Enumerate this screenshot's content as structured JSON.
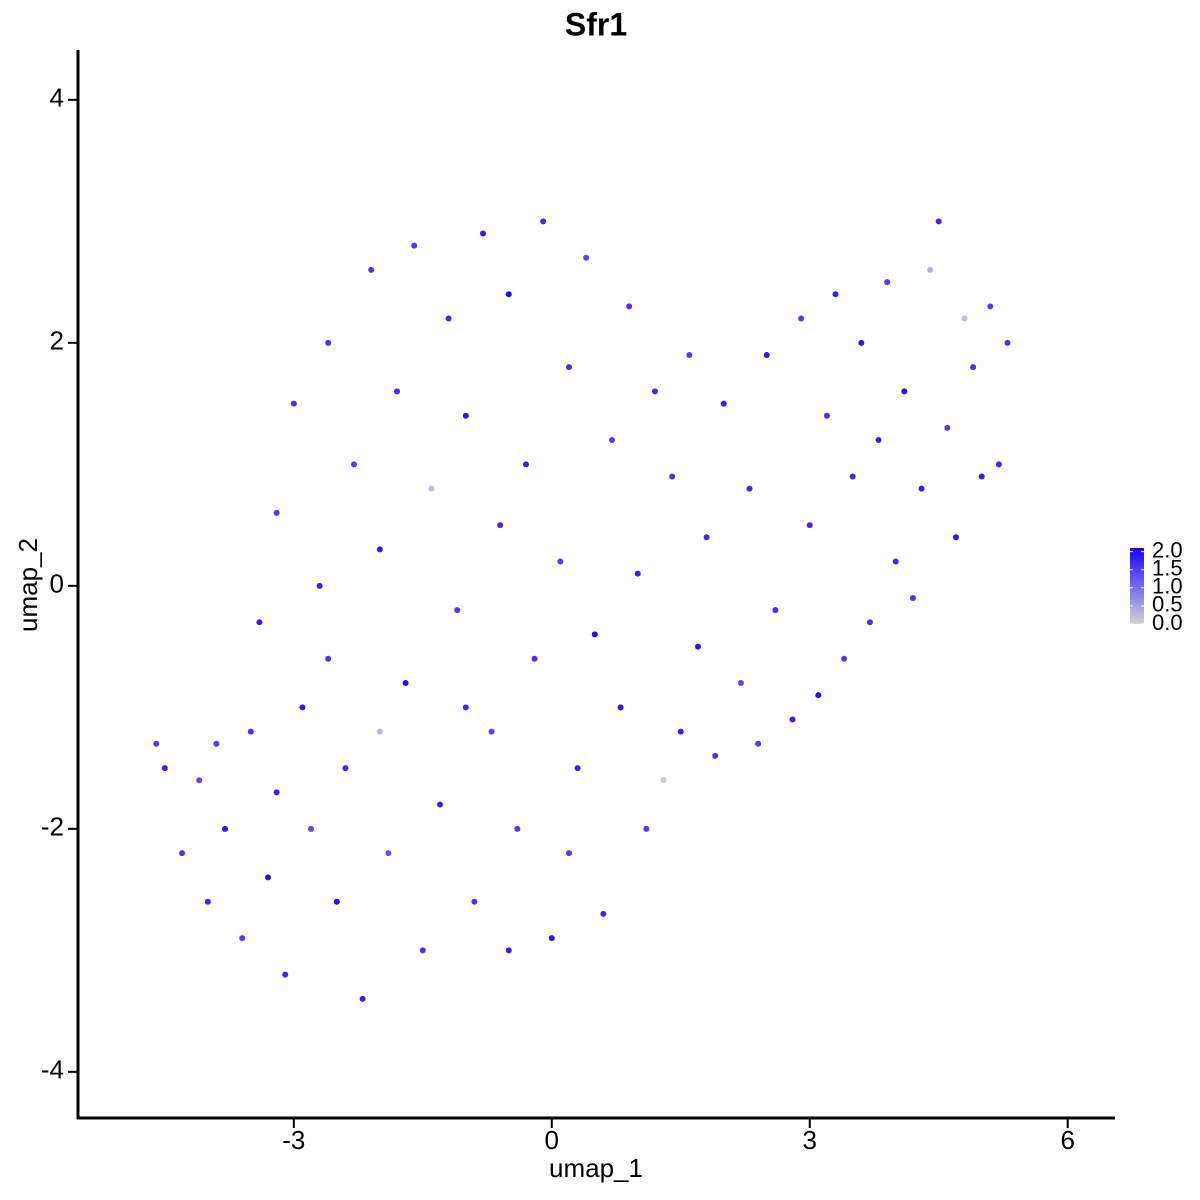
{
  "chart_data": {
    "type": "scatter",
    "title": "Sfr1",
    "x_label": "umap_1",
    "y_label": "umap_2",
    "xlim": [
      -5.51,
      6.55
    ],
    "ylim": [
      -4.38,
      4.41
    ],
    "xticks": [
      -3,
      0,
      3,
      6
    ],
    "yticks": [
      -4,
      -2,
      0,
      2,
      4
    ],
    "color_low": "#d3d3d3",
    "color_high": "#1a00ff",
    "color_lim": [
      0,
      2.1
    ],
    "legend_ticks": [
      {
        "value": 0,
        "label": "0.0"
      },
      {
        "value": 0.5,
        "label": "0.5"
      },
      {
        "value": 1,
        "label": "1.0"
      },
      {
        "value": 1.5,
        "label": "1.5"
      },
      {
        "value": 2,
        "label": "2.0"
      }
    ],
    "series": [
      {
        "x": [
          -4.6,
          -4.5,
          -4.3,
          -4.1,
          -4.0,
          -3.8,
          -3.6,
          -3.5,
          -3.4,
          -3.3,
          -3.2,
          -3.1,
          -3.0,
          -2.9,
          -2.8,
          -2.7,
          -2.6,
          -2.5,
          -2.4,
          -2.3,
          -2.2,
          -2.1,
          -2.0,
          -1.9,
          -1.8,
          -1.7,
          -1.6,
          -1.5,
          -1.4,
          -1.3,
          -1.2,
          -1.1,
          -1.0,
          -0.9,
          -0.8,
          -0.7,
          -0.6,
          -0.5,
          -0.4,
          -0.3,
          -0.2,
          -0.1,
          0.0,
          0.1,
          0.2,
          0.3,
          0.4,
          0.5,
          0.6,
          0.7,
          0.8,
          0.9,
          1.0,
          1.1,
          1.2,
          1.3,
          1.4,
          1.5,
          1.6,
          1.7,
          1.8,
          1.9,
          2.0,
          2.2,
          2.3,
          2.4,
          2.5,
          2.6,
          2.8,
          2.9,
          3.0,
          3.1,
          3.2,
          3.3,
          3.4,
          3.5,
          3.6,
          3.7,
          3.8,
          3.9,
          4.0,
          4.1,
          4.2,
          4.3,
          4.4,
          4.5,
          4.6,
          4.7,
          4.8,
          4.9,
          5.0,
          5.1,
          5.2,
          5.3,
          -3.9,
          -3.2,
          -2.6,
          -2.0,
          -1.0,
          0.2,
          -0.5
        ],
        "y": [
          -1.3,
          -1.5,
          -2.2,
          -1.6,
          -2.6,
          -2.0,
          -2.9,
          -1.2,
          -0.3,
          -2.4,
          0.6,
          -3.2,
          1.5,
          -1.0,
          -2.0,
          0.0,
          2.0,
          -2.6,
          -1.5,
          1.0,
          -3.4,
          2.6,
          0.3,
          -2.2,
          1.6,
          -0.8,
          2.8,
          -3.0,
          0.8,
          -1.8,
          2.2,
          -0.2,
          1.4,
          -2.6,
          2.9,
          -1.2,
          0.5,
          2.4,
          -2.0,
          1.0,
          -0.6,
          3.0,
          -2.9,
          0.2,
          1.8,
          -1.5,
          2.7,
          -0.4,
          -2.7,
          1.2,
          -1.0,
          2.3,
          0.1,
          -2.0,
          1.6,
          -1.6,
          0.9,
          -1.2,
          1.9,
          -0.5,
          0.4,
          -1.4,
          1.5,
          -0.8,
          0.8,
          -1.3,
          1.9,
          -0.2,
          -1.1,
          2.2,
          0.5,
          -0.9,
          1.4,
          2.4,
          -0.6,
          0.9,
          2.0,
          -0.3,
          1.2,
          2.5,
          0.2,
          1.6,
          -0.1,
          0.8,
          2.6,
          3.0,
          1.3,
          0.4,
          2.2,
          1.8,
          0.9,
          2.3,
          1.0,
          2.0,
          -1.3,
          -1.7,
          -0.6,
          -1.2,
          -1.0,
          -2.2,
          -3.0
        ],
        "values": [
          1.5,
          1.8,
          1.6,
          1.4,
          1.7,
          1.9,
          1.5,
          1.6,
          1.8,
          2.0,
          1.5,
          1.7,
          1.6,
          1.9,
          1.4,
          1.8,
          1.6,
          2.0,
          1.7,
          1.5,
          1.8,
          1.6,
          1.9,
          1.3,
          1.7,
          2.0,
          1.5,
          1.6,
          0.2,
          1.8,
          1.7,
          1.5,
          1.9,
          1.6,
          1.8,
          1.4,
          1.7,
          2.0,
          1.5,
          1.8,
          1.6,
          1.7,
          1.9,
          1.5,
          1.6,
          1.8,
          1.4,
          2.0,
          1.7,
          1.5,
          1.9,
          1.6,
          1.8,
          1.5,
          1.7,
          0.1,
          1.6,
          1.8,
          1.5,
          1.9,
          1.7,
          1.6,
          1.8,
          1.4,
          1.7,
          1.5,
          1.9,
          1.6,
          1.8,
          1.5,
          1.7,
          2.0,
          1.6,
          1.8,
          1.5,
          1.7,
          1.9,
          1.6,
          1.8,
          1.5,
          1.7,
          2.0,
          1.6,
          1.8,
          0.3,
          1.7,
          1.5,
          1.9,
          0.2,
          1.6,
          1.8,
          1.5,
          1.7,
          1.6,
          1.5,
          1.8,
          1.6,
          0.3,
          1.7,
          1.5,
          1.8
        ]
      }
    ]
  }
}
